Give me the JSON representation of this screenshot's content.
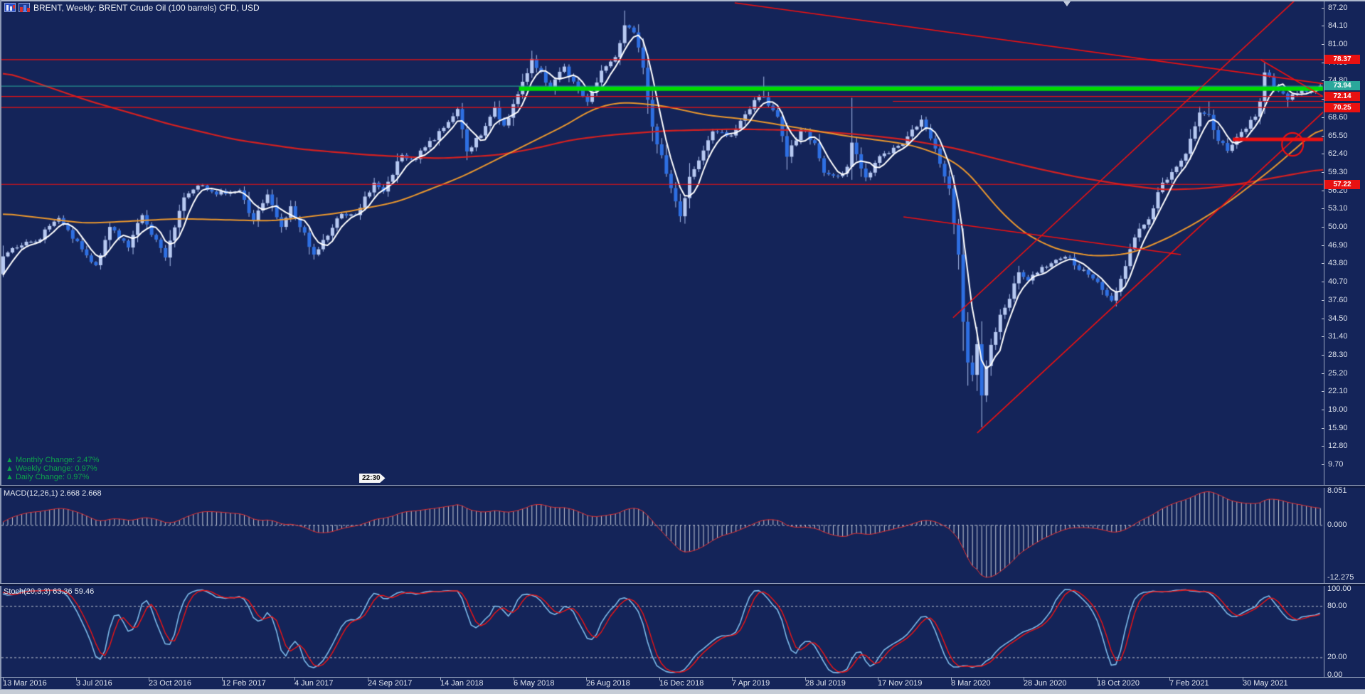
{
  "window": {
    "title": "BRENT, Weekly:  BRENT Crude Oil (100 barrels) CFD, USD"
  },
  "ui": {
    "changes": [
      "▲ Monthly Change: 2.47%",
      "▲ Weekly Change: 0.97%",
      "▲ Daily Change: 0.97%"
    ],
    "countdown": "22:30"
  },
  "colors": {
    "bg": "#142459",
    "border_light": "#aeb9cc",
    "border_mid": "#8d99b5",
    "border_dark": "#101c45",
    "bull": "#b7c9f2",
    "bear": "#2e6fe2",
    "wick": "#a9bdec",
    "ma_fast": "#ffffff",
    "ma_mid": "#e8962e",
    "ma_slow": "#d42020",
    "line_red": "#ee1111",
    "band_green": "#00dc00",
    "bid": "#2aa79b",
    "label_red": "#e81111",
    "label_teal": "#2aa79b",
    "green_text": "#0ea24c",
    "axis_text": "#dfe4ee",
    "macd_bar": "#c5ccd8",
    "macd_line": "#e03030",
    "stoch_main": "#7cb9e8",
    "stoch_signal": "#ee1414",
    "dash": "#b9c0cf",
    "bottom_strip": "#c6ccd6"
  },
  "chart_data": [
    {
      "id": "price",
      "type": "candlestick",
      "symbol": "BRENT",
      "timeframe": "Weekly",
      "title": "BRENT Crude Oil (100 barrels) CFD, USD",
      "grid": false,
      "legend_position": "none",
      "ylim": [
        9.7,
        87.2
      ],
      "y_axis_ticks": [
        87.2,
        84.1,
        81.0,
        77.9,
        74.8,
        71.7,
        68.6,
        65.5,
        62.4,
        59.3,
        56.2,
        53.1,
        50.0,
        46.9,
        43.8,
        40.7,
        37.6,
        34.5,
        31.4,
        28.3,
        25.2,
        22.1,
        19.0,
        15.9,
        12.8,
        9.7
      ],
      "x_labels": [
        "13 Mar 2016",
        "3 Jul 2016",
        "23 Oct 2016",
        "12 Feb 2017",
        "4 Jun 2017",
        "24 Sep 2017",
        "14 Jan 2018",
        "6 May 2018",
        "26 Aug 2018",
        "16 Dec 2018",
        "7 Apr 2019",
        "28 Jul 2019",
        "17 Nov 2019",
        "8 Mar 2020",
        "28 Jun 2020",
        "18 Oct 2020",
        "7 Feb 2021",
        "30 May 2021"
      ],
      "bid_price": 73.94,
      "price_labels": [
        {
          "value": "78.37",
          "price": 78.37,
          "type": "red"
        },
        {
          "value": "73.94",
          "price": 73.94,
          "type": "teal"
        },
        {
          "value": "72.14",
          "price": 72.14,
          "type": "red"
        },
        {
          "value": "70.25",
          "price": 70.25,
          "type": "red"
        },
        {
          "value": "57.22",
          "price": 57.22,
          "type": "red"
        }
      ],
      "pre_close_anchors": [
        [
          -60,
          48
        ],
        [
          -45,
          50
        ],
        [
          -35,
          47
        ],
        [
          -25,
          40
        ],
        [
          -18,
          35
        ],
        [
          -12,
          31
        ],
        [
          -8,
          34
        ],
        [
          -4,
          40
        ],
        [
          -1,
          42
        ]
      ],
      "close_anchors": [
        [
          0,
          45.0
        ],
        [
          3,
          46.5
        ],
        [
          7,
          47.5
        ],
        [
          12,
          51.5
        ],
        [
          15,
          48.0
        ],
        [
          20,
          43.5
        ],
        [
          23,
          50.0
        ],
        [
          27,
          46.5
        ],
        [
          30,
          52.0
        ],
        [
          35,
          44.8
        ],
        [
          39,
          55.0
        ],
        [
          42,
          57.0
        ],
        [
          46,
          55.5
        ],
        [
          51,
          56.2
        ],
        [
          54,
          51.0
        ],
        [
          57,
          55.5
        ],
        [
          60,
          50.0
        ],
        [
          62,
          53.5
        ],
        [
          67,
          45.3
        ],
        [
          70,
          48.5
        ],
        [
          73,
          52.2
        ],
        [
          76,
          52.0
        ],
        [
          80,
          57.5
        ],
        [
          82,
          56.0
        ],
        [
          86,
          62.2
        ],
        [
          89,
          61.5
        ],
        [
          91,
          63.5
        ],
        [
          95,
          66.8
        ],
        [
          98,
          70.0
        ],
        [
          100,
          62.8
        ],
        [
          103,
          65.5
        ],
        [
          106,
          70.3
        ],
        [
          108,
          67.2
        ],
        [
          111,
          72.5
        ],
        [
          114,
          78.5
        ],
        [
          116,
          76.3
        ],
        [
          118,
          73.4
        ],
        [
          121,
          77.2
        ],
        [
          124,
          73.2
        ],
        [
          126,
          71.2
        ],
        [
          129,
          76.5
        ],
        [
          132,
          78.8
        ],
        [
          134,
          84.2
        ],
        [
          136,
          83.0
        ],
        [
          138,
          77.0
        ],
        [
          140,
          67.0
        ],
        [
          143,
          59.0
        ],
        [
          146,
          51.8
        ],
        [
          148,
          58.5
        ],
        [
          153,
          66.2
        ],
        [
          157,
          65.5
        ],
        [
          162,
          71.5
        ],
        [
          164,
          72.0
        ],
        [
          167,
          68.7
        ],
        [
          169,
          61.9
        ],
        [
          172,
          66.5
        ],
        [
          175,
          64.2
        ],
        [
          177,
          59.2
        ],
        [
          180,
          58.6
        ],
        [
          182,
          60.2
        ],
        [
          183,
          64.3
        ],
        [
          186,
          58.4
        ],
        [
          189,
          62.0
        ],
        [
          191,
          62.5
        ],
        [
          194,
          64.0
        ],
        [
          198,
          68.2
        ],
        [
          200,
          65.0
        ],
        [
          202,
          60.7
        ],
        [
          204,
          56.5
        ],
        [
          205,
          50.5
        ],
        [
          206,
          45.3
        ],
        [
          207,
          33.9
        ],
        [
          208,
          27.0
        ],
        [
          209,
          24.9
        ],
        [
          210,
          30.1
        ],
        [
          211,
          21.4
        ],
        [
          212,
          26.4
        ],
        [
          213,
          30.0
        ],
        [
          215,
          35.1
        ],
        [
          217,
          37.8
        ],
        [
          219,
          42.3
        ],
        [
          221,
          40.9
        ],
        [
          224,
          43.2
        ],
        [
          227,
          44.4
        ],
        [
          230,
          44.8
        ],
        [
          232,
          42.7
        ],
        [
          234,
          41.9
        ],
        [
          237,
          39.3
        ],
        [
          239,
          37.5
        ],
        [
          241,
          41.2
        ],
        [
          244,
          48.2
        ],
        [
          247,
          51.3
        ],
        [
          249,
          55.9
        ],
        [
          252,
          59.3
        ],
        [
          255,
          62.4
        ],
        [
          258,
          69.4
        ],
        [
          260,
          69.0
        ],
        [
          262,
          64.6
        ],
        [
          264,
          62.9
        ],
        [
          267,
          66.1
        ],
        [
          270,
          68.7
        ],
        [
          271,
          71.3
        ],
        [
          272,
          76.2
        ],
        [
          273,
          75.5
        ],
        [
          275,
          73.0
        ],
        [
          277,
          71.6
        ],
        [
          278,
          72.5
        ],
        [
          280,
          73.2
        ],
        [
          282,
          73.0
        ],
        [
          284,
          73.94
        ]
      ],
      "wick_overrides": {
        "134": {
          "high": 86.7
        },
        "164": {
          "high": 75.5
        },
        "183": {
          "high": 71.9
        },
        "209": {
          "low": 23.8
        },
        "211": {
          "low": 16.0
        },
        "260": {
          "high": 71.3
        },
        "272": {
          "high": 77.84
        },
        "277": {
          "low": 70.3
        }
      },
      "ma_fast": {
        "color_name": "white",
        "period": 5
      },
      "ma_mid_anchors": [
        [
          0,
          52.3
        ],
        [
          18,
          50.6
        ],
        [
          38,
          51.4
        ],
        [
          58,
          51.0
        ],
        [
          73,
          52.4
        ],
        [
          85,
          54.2
        ],
        [
          99,
          58.5
        ],
        [
          113,
          64.0
        ],
        [
          122,
          67.5
        ],
        [
          127,
          70.0
        ],
        [
          133,
          71.2
        ],
        [
          142,
          70.6
        ],
        [
          152,
          68.9
        ],
        [
          160,
          68.3
        ],
        [
          170,
          67.0
        ],
        [
          182,
          65.4
        ],
        [
          190,
          64.6
        ],
        [
          196,
          63.9
        ],
        [
          203,
          62.0
        ],
        [
          208,
          59.5
        ],
        [
          214,
          53.5
        ],
        [
          220,
          49.0
        ],
        [
          227,
          46.2
        ],
        [
          235,
          45.0
        ],
        [
          243,
          45.4
        ],
        [
          251,
          48.0
        ],
        [
          258,
          51.0
        ],
        [
          264,
          54.0
        ],
        [
          269,
          57.0
        ],
        [
          274,
          60.0
        ],
        [
          279,
          63.5
        ],
        [
          285,
          67.5
        ]
      ],
      "ma_slow_anchors": [
        [
          0,
          76.4
        ],
        [
          18,
          71.5
        ],
        [
          36,
          67.4
        ],
        [
          50,
          64.8
        ],
        [
          64,
          63.2
        ],
        [
          79,
          62.2
        ],
        [
          94,
          61.6
        ],
        [
          107,
          62.2
        ],
        [
          116,
          63.5
        ],
        [
          122,
          64.7
        ],
        [
          131,
          65.6
        ],
        [
          143,
          66.3
        ],
        [
          158,
          66.6
        ],
        [
          171,
          66.4
        ],
        [
          183,
          65.8
        ],
        [
          194,
          64.9
        ],
        [
          205,
          63.4
        ],
        [
          214,
          61.6
        ],
        [
          223,
          59.9
        ],
        [
          232,
          58.4
        ],
        [
          242,
          57.1
        ],
        [
          250,
          56.3
        ],
        [
          259,
          56.5
        ],
        [
          266,
          57.2
        ],
        [
          276,
          58.6
        ],
        [
          285,
          59.9
        ]
      ],
      "overlays": {
        "horizontal_lines": [
          {
            "price": 78.37
          },
          {
            "price": 72.14
          },
          {
            "price": 70.25
          },
          {
            "price": 57.22
          }
        ],
        "horizontal_segments": [
          {
            "price": 71.3,
            "w1": 191.9,
            "w2": 285,
            "width": 1.2
          },
          {
            "price": 64.85,
            "w1": 265.2,
            "w2": 285,
            "width": 5
          }
        ],
        "band": {
          "price": 73.45,
          "w1": 111.3,
          "w2": 285,
          "width": 6
        },
        "trendlines": [
          {
            "w1": 157.8,
            "p1": 88.0,
            "w2": 286.5,
            "p2": 74.1
          },
          {
            "w1": 271.2,
            "p1": 78.36,
            "w2": 290.5,
            "p2": 69.4
          },
          {
            "w1": 194.2,
            "p1": 51.7,
            "w2": 254.0,
            "p2": 45.3
          },
          {
            "w1": 204.9,
            "p1": 34.6,
            "w2": 278.7,
            "p2": 88.5
          },
          {
            "w1": 210.1,
            "p1": 15.05,
            "w2": 285.0,
            "p2": 69.7
          }
        ],
        "ellipse": {
          "w": 278.1,
          "price": 64.0,
          "rw": 2.3,
          "rp": 1.95
        }
      }
    },
    {
      "id": "macd",
      "type": "bar+line",
      "label": "MACD(12,26,1)",
      "values_text": "2.668 2.668",
      "params": {
        "fast": 12,
        "slow": 26,
        "signal": 1
      },
      "last_value": 2.668,
      "levels": [
        {
          "text": "8.051",
          "v": 8.051
        },
        {
          "text": "0.000",
          "v": 0.0,
          "dashed": true
        },
        {
          "text": "-12.275",
          "v": -12.275
        }
      ],
      "range": [
        -12.275,
        8.051
      ]
    },
    {
      "id": "stoch",
      "type": "line",
      "label": "Stoch(20,3,3)",
      "values_text": "63.36 59.46",
      "params": {
        "k": 20,
        "slowing": 3,
        "d": 3
      },
      "last_values": [
        63.36,
        59.46
      ],
      "levels": [
        {
          "text": "100.00",
          "v": 100
        },
        {
          "text": "80.00",
          "v": 80,
          "dashed": true
        },
        {
          "text": "20.00",
          "v": 20,
          "dashed": true
        },
        {
          "text": "0.00",
          "v": 0
        }
      ],
      "range": [
        0,
        100
      ]
    }
  ]
}
